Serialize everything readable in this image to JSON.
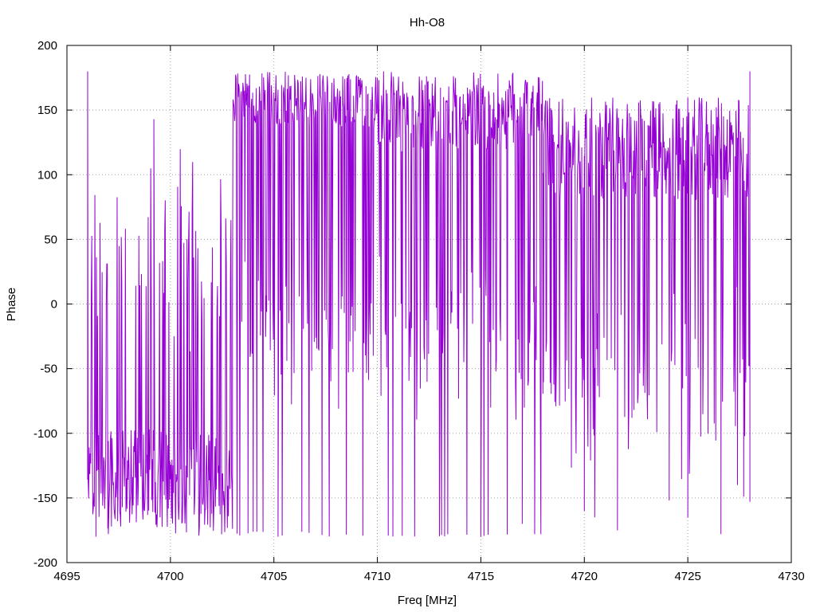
{
  "chart_data": {
    "type": "line",
    "title": "Hh-O8",
    "xlabel": "Freq [MHz]",
    "ylabel": "Phase",
    "xlim": [
      4695,
      4730
    ],
    "ylim": [
      -200,
      200
    ],
    "x_ticks": [
      "4695",
      "4700",
      "4705",
      "4710",
      "4715",
      "4720",
      "4725",
      "4730"
    ],
    "y_ticks": [
      "200",
      "150",
      "100",
      "50",
      "0",
      "-50",
      "-100",
      "-150",
      "-200"
    ],
    "grid": true,
    "legend": "none",
    "series": [
      {
        "color": "#9400d3",
        "segments": [
          {
            "x_start": 4696.0,
            "x_end": 4699.9,
            "center": -135,
            "spread": 25
          },
          {
            "x_start": 4699.9,
            "x_end": 4703.0,
            "center": -140,
            "spread": 25
          },
          {
            "x_start": 4703.0,
            "x_end": 4710.0,
            "center": 160,
            "spread": 15
          },
          {
            "x_start": 4710.0,
            "x_end": 4718.0,
            "center": 150,
            "spread": 20
          },
          {
            "x_start": 4718.0,
            "x_end": 4728.0,
            "center": 120,
            "spread": 25
          }
        ],
        "notable_points": [
          {
            "x": 4696.0,
            "y": 180
          },
          {
            "x": 4696.4,
            "y": -180
          },
          {
            "x": 4697.0,
            "y": -178
          },
          {
            "x": 4699.2,
            "y": 143
          },
          {
            "x": 4705.2,
            "y": -180
          },
          {
            "x": 4710.3,
            "y": 180
          },
          {
            "x": 4715.0,
            "y": -180
          },
          {
            "x": 4717.0,
            "y": -170
          },
          {
            "x": 4720.0,
            "y": -160
          },
          {
            "x": 4720.5,
            "y": -165
          },
          {
            "x": 4721.6,
            "y": -175
          },
          {
            "x": 4724.1,
            "y": -152
          },
          {
            "x": 4725.0,
            "y": -165
          },
          {
            "x": 4726.6,
            "y": -178
          },
          {
            "x": 4727.4,
            "y": -140
          },
          {
            "x": 4727.7,
            "y": -149
          },
          {
            "x": 4728.0,
            "y": 180
          },
          {
            "x": 4728.0,
            "y": -153
          }
        ]
      }
    ]
  }
}
